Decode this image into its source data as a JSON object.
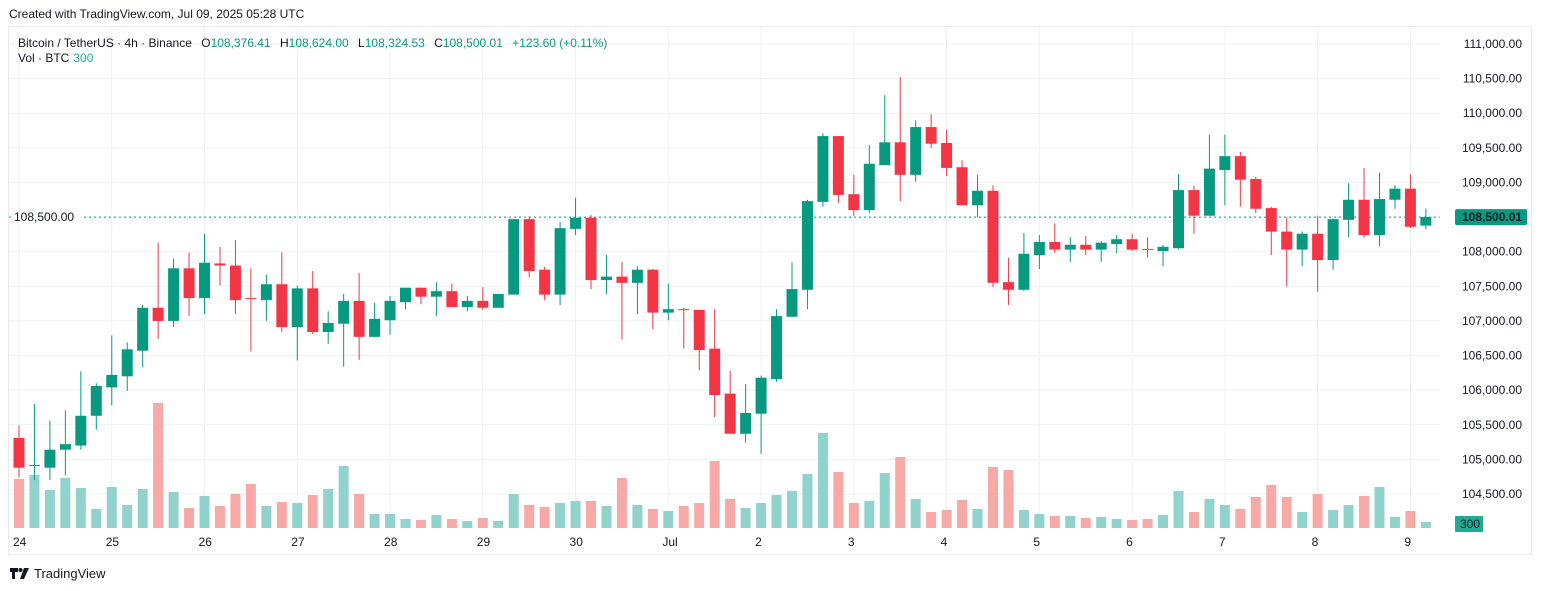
{
  "credit": "Created with TradingView.com, Jul 09, 2025 05:28 UTC",
  "legend": {
    "symbol": "Bitcoin / TetherUS · 4h · Binance",
    "o_label": "O",
    "o": "108,376.41",
    "h_label": "H",
    "h": "108,624.00",
    "l_label": "L",
    "l": "108,324.53",
    "c_label": "C",
    "c": "108,500.01",
    "change": "+123.60 (+0.11%)"
  },
  "vol_legend": {
    "label": "Vol · BTC",
    "value": "300"
  },
  "logo_text": "TradingView",
  "colors": {
    "up": "#089981",
    "down": "#F23645",
    "vol_up": "#92D2CC",
    "vol_down": "#F7A9A7",
    "last_price_bg": "#089981",
    "vol_badge_bg": "#22AB94",
    "grid": "#F0F1F3"
  },
  "chart_data": {
    "type": "candlestick",
    "interval": "4h",
    "ylim": [
      104200,
      111300
    ],
    "grid": true,
    "y_ticks": [
      "111,000.00",
      "110,500.00",
      "110,000.00",
      "109,500.00",
      "109,000.00",
      "108,500.00",
      "108,000.00",
      "107,500.00",
      "107,000.00",
      "106,500.00",
      "106,000.00",
      "105,500.00",
      "105,000.00",
      "104,500.00"
    ],
    "y_tick_values": [
      111000,
      110500,
      110000,
      109500,
      109000,
      108500,
      108000,
      107500,
      107000,
      106500,
      106000,
      105500,
      105000,
      104500
    ],
    "x_ticks": [
      {
        "label": "24",
        "candle": 0
      },
      {
        "label": "25",
        "candle": 6
      },
      {
        "label": "26",
        "candle": 12
      },
      {
        "label": "27",
        "candle": 18
      },
      {
        "label": "28",
        "candle": 24
      },
      {
        "label": "29",
        "candle": 30
      },
      {
        "label": "30",
        "candle": 36
      },
      {
        "label": "Jul",
        "candle": 42
      },
      {
        "label": "2",
        "candle": 48
      },
      {
        "label": "3",
        "candle": 54
      },
      {
        "label": "4",
        "candle": 60
      },
      {
        "label": "5",
        "candle": 66
      },
      {
        "label": "6",
        "candle": 72
      },
      {
        "label": "7",
        "candle": 78
      },
      {
        "label": "8",
        "candle": 84
      },
      {
        "label": "9",
        "candle": 90
      }
    ],
    "last_price": 108500.01,
    "last_price_label": "108,500.01",
    "last_volume_label": "300",
    "ohlc": [
      [
        105310,
        105490,
        104740,
        104880
      ],
      [
        104910,
        105800,
        104700,
        104920
      ],
      [
        104880,
        105560,
        104700,
        105140
      ],
      [
        105140,
        105710,
        104770,
        105220
      ],
      [
        105200,
        106270,
        105140,
        105630
      ],
      [
        105630,
        106100,
        105430,
        106060
      ],
      [
        106040,
        106790,
        105780,
        106220
      ],
      [
        106200,
        106690,
        105990,
        106590
      ],
      [
        106570,
        107230,
        106330,
        107190
      ],
      [
        107190,
        108130,
        106740,
        107000
      ],
      [
        107000,
        107900,
        106910,
        107760
      ],
      [
        107760,
        107990,
        107070,
        107330
      ],
      [
        107330,
        108260,
        107100,
        107840
      ],
      [
        107830,
        108070,
        107510,
        107800
      ],
      [
        107800,
        108170,
        107100,
        107300
      ],
      [
        107330,
        107760,
        106560,
        107320
      ],
      [
        107300,
        107670,
        107000,
        107530
      ],
      [
        107530,
        107990,
        106840,
        106910
      ],
      [
        106910,
        107510,
        106430,
        107470
      ],
      [
        107470,
        107720,
        106810,
        106840
      ],
      [
        106840,
        107140,
        106670,
        106970
      ],
      [
        106960,
        107390,
        106340,
        107290
      ],
      [
        107290,
        107690,
        106440,
        106770
      ],
      [
        106770,
        107260,
        106770,
        107030
      ],
      [
        107010,
        107360,
        106800,
        107290
      ],
      [
        107270,
        107480,
        107170,
        107480
      ],
      [
        107480,
        107480,
        107240,
        107350
      ],
      [
        107350,
        107560,
        107070,
        107430
      ],
      [
        107430,
        107540,
        107200,
        107200
      ],
      [
        107200,
        107360,
        107140,
        107290
      ],
      [
        107290,
        107490,
        107160,
        107190
      ],
      [
        107190,
        107390,
        107190,
        107390
      ],
      [
        107380,
        108470,
        107380,
        108470
      ],
      [
        108470,
        108510,
        107630,
        107720
      ],
      [
        107740,
        107780,
        107300,
        107380
      ],
      [
        107380,
        108430,
        107230,
        108340
      ],
      [
        108330,
        108780,
        108240,
        108490
      ],
      [
        108490,
        108530,
        107460,
        107590
      ],
      [
        107590,
        107950,
        107390,
        107640
      ],
      [
        107640,
        107850,
        106730,
        107550
      ],
      [
        107550,
        107790,
        107100,
        107740
      ],
      [
        107740,
        107750,
        106880,
        107120
      ],
      [
        107120,
        107540,
        107010,
        107170
      ],
      [
        107170,
        107190,
        106600,
        107160
      ],
      [
        107160,
        107160,
        106290,
        106580
      ],
      [
        106600,
        107170,
        105610,
        105930
      ],
      [
        105950,
        106280,
        105370,
        105370
      ],
      [
        105370,
        106090,
        105240,
        105670
      ],
      [
        105660,
        106210,
        105080,
        106180
      ],
      [
        106160,
        107170,
        106120,
        107070
      ],
      [
        107060,
        107850,
        107060,
        107460
      ],
      [
        107450,
        108750,
        107170,
        108730
      ],
      [
        108720,
        109710,
        108650,
        109670
      ],
      [
        109670,
        109670,
        108700,
        108820
      ],
      [
        108830,
        109110,
        108520,
        108600
      ],
      [
        108600,
        109540,
        108560,
        109270
      ],
      [
        109250,
        110260,
        109250,
        109580
      ],
      [
        109580,
        110520,
        108730,
        109110
      ],
      [
        109110,
        109900,
        109010,
        109800
      ],
      [
        109800,
        109990,
        109500,
        109560
      ],
      [
        109570,
        109760,
        109090,
        109210
      ],
      [
        109220,
        109320,
        108670,
        108670
      ],
      [
        108670,
        109110,
        108500,
        108880
      ],
      [
        108880,
        108960,
        107490,
        107550
      ],
      [
        107560,
        107910,
        107230,
        107450
      ],
      [
        107450,
        108270,
        107430,
        107970
      ],
      [
        107950,
        108240,
        107750,
        108140
      ],
      [
        108140,
        108410,
        107980,
        108030
      ],
      [
        108030,
        108210,
        107850,
        108100
      ],
      [
        108100,
        108230,
        107950,
        108030
      ],
      [
        108030,
        108150,
        107850,
        108130
      ],
      [
        108110,
        108240,
        107980,
        108180
      ],
      [
        108180,
        108260,
        108010,
        108030
      ],
      [
        108040,
        108210,
        107920,
        108030
      ],
      [
        108010,
        108100,
        107790,
        108070
      ],
      [
        108050,
        109120,
        108040,
        108890
      ],
      [
        108890,
        108950,
        108260,
        108520
      ],
      [
        108520,
        109690,
        108520,
        109200
      ],
      [
        109180,
        109690,
        108670,
        109380
      ],
      [
        109380,
        109440,
        108650,
        109040
      ],
      [
        109050,
        109080,
        108560,
        108620
      ],
      [
        108630,
        108650,
        107950,
        108290
      ],
      [
        108290,
        108490,
        107500,
        108030
      ],
      [
        108030,
        108290,
        107790,
        108260
      ],
      [
        108260,
        108520,
        107420,
        107880
      ],
      [
        107880,
        108470,
        107740,
        108470
      ],
      [
        108460,
        108990,
        108210,
        108750
      ],
      [
        108750,
        109210,
        108200,
        108240
      ],
      [
        108240,
        109140,
        108080,
        108760
      ],
      [
        108750,
        108960,
        108620,
        108910
      ],
      [
        108910,
        109120,
        108340,
        108360
      ],
      [
        108376.41,
        108624,
        108324.53,
        108500.01
      ]
    ],
    "volume": [
      2450,
      2650,
      1900,
      2500,
      2000,
      950,
      2050,
      1150,
      1950,
      6250,
      1800,
      1000,
      1600,
      1100,
      1700,
      2200,
      1100,
      1300,
      1250,
      1650,
      1950,
      3100,
      1700,
      700,
      700,
      450,
      400,
      650,
      450,
      350,
      500,
      350,
      1700,
      1150,
      1050,
      1250,
      1350,
      1350,
      1100,
      2500,
      1150,
      950,
      850,
      1100,
      1250,
      3350,
      1450,
      1000,
      1250,
      1650,
      1850,
      2700,
      4750,
      2800,
      1250,
      1350,
      2750,
      3550,
      1450,
      800,
      900,
      1400,
      950,
      3050,
      2900,
      900,
      700,
      600,
      600,
      500,
      550,
      450,
      400,
      450,
      650,
      1850,
      800,
      1450,
      1150,
      950,
      1550,
      2150,
      1550,
      800,
      1700,
      900,
      1150,
      1600,
      2050,
      550,
      850,
      300
    ]
  }
}
